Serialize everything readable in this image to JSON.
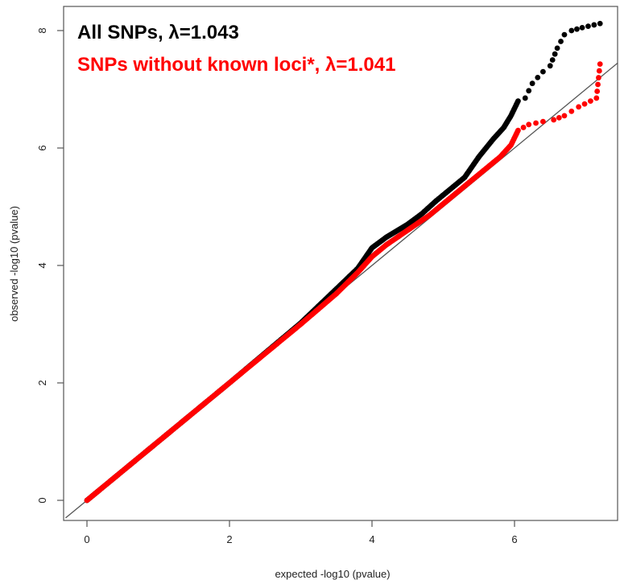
{
  "chart_data": {
    "type": "scatter",
    "xlabel": "expected -log10 (pvalue)",
    "ylabel": "observed -log10 (pvalue)",
    "xlim": [
      -0.3,
      7.5
    ],
    "ylim": [
      -0.3,
      8.5
    ],
    "x_ticks": [
      "0",
      "2",
      "4",
      "6"
    ],
    "y_ticks": [
      "0",
      "2",
      "4",
      "6",
      "8"
    ],
    "legend_position": "top-left",
    "reference_line": "y = x",
    "series": [
      {
        "name": "All SNPs, λ=1.043",
        "color": "#000000",
        "points": [
          [
            0,
            0
          ],
          [
            0.5,
            0.5
          ],
          [
            1,
            1
          ],
          [
            1.5,
            1.5
          ],
          [
            2,
            2
          ],
          [
            2.5,
            2.51
          ],
          [
            3,
            3.02
          ],
          [
            3.5,
            3.6
          ],
          [
            3.8,
            3.95
          ],
          [
            4,
            4.3
          ],
          [
            4.2,
            4.48
          ],
          [
            4.5,
            4.7
          ],
          [
            4.7,
            4.88
          ],
          [
            4.9,
            5.1
          ],
          [
            5.1,
            5.3
          ],
          [
            5.3,
            5.5
          ],
          [
            5.5,
            5.85
          ],
          [
            5.7,
            6.15
          ],
          [
            5.85,
            6.35
          ],
          [
            5.95,
            6.55
          ],
          [
            6.05,
            6.8
          ],
          [
            6.15,
            6.85
          ],
          [
            6.25,
            7.1
          ],
          [
            6.4,
            7.3
          ],
          [
            6.5,
            7.4
          ],
          [
            6.6,
            7.7
          ],
          [
            6.7,
            7.93
          ],
          [
            6.8,
            8.0
          ],
          [
            6.95,
            8.05
          ],
          [
            7.2,
            8.12
          ]
        ]
      },
      {
        "name": "SNPs without known loci*, λ=1.041",
        "color": "#ff0000",
        "points": [
          [
            0,
            0
          ],
          [
            0.5,
            0.5
          ],
          [
            1,
            1
          ],
          [
            1.5,
            1.5
          ],
          [
            2,
            2
          ],
          [
            2.5,
            2.5
          ],
          [
            3,
            3
          ],
          [
            3.5,
            3.52
          ],
          [
            3.8,
            3.88
          ],
          [
            4,
            4.15
          ],
          [
            4.2,
            4.35
          ],
          [
            4.5,
            4.6
          ],
          [
            4.8,
            4.85
          ],
          [
            5,
            5.05
          ],
          [
            5.2,
            5.25
          ],
          [
            5.4,
            5.45
          ],
          [
            5.6,
            5.65
          ],
          [
            5.8,
            5.85
          ],
          [
            5.95,
            6.05
          ],
          [
            6.05,
            6.3
          ],
          [
            6.2,
            6.4
          ],
          [
            6.4,
            6.45
          ],
          [
            6.55,
            6.48
          ],
          [
            6.7,
            6.55
          ],
          [
            6.9,
            6.7
          ],
          [
            7.15,
            6.85
          ],
          [
            7.2,
            7.43
          ]
        ]
      }
    ]
  }
}
